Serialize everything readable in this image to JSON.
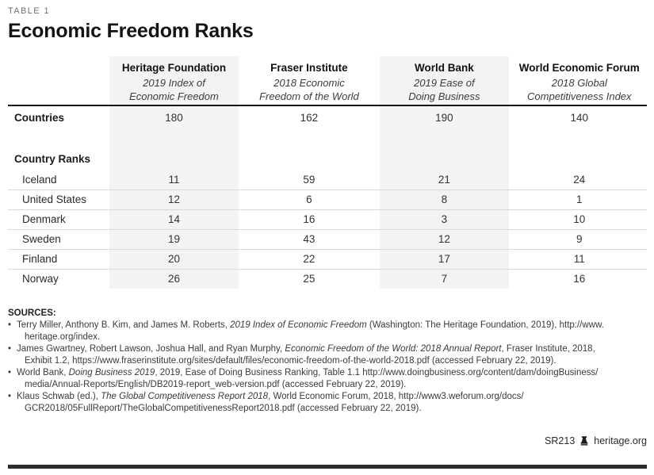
{
  "page": {
    "table_label": "TABLE 1",
    "title": "Economic Freedom Ranks",
    "footer_id": "SR213",
    "footer_site": "heritage.org"
  },
  "colors": {
    "shaded_column_bg": "#f3f3f1",
    "row_divider": "#dadada",
    "header_rule": "#161616",
    "bottom_bar": "#2c2c2c"
  },
  "table": {
    "columns": [
      {
        "name": "Heritage Foundation",
        "subtitle": [
          "2019 Index of",
          "Economic Freedom"
        ],
        "shaded": true
      },
      {
        "name": "Fraser Institute",
        "subtitle": [
          "2018 Economic",
          "Freedom of the World"
        ],
        "shaded": false
      },
      {
        "name": "World Bank",
        "subtitle": [
          "2019 Ease of",
          "Doing Business"
        ],
        "shaded": true
      },
      {
        "name": "World Economic Forum",
        "subtitle": [
          "2018 Global",
          "Competitiveness Index"
        ],
        "shaded": false
      }
    ],
    "countries_row": {
      "label": "Countries",
      "values": [
        "180",
        "162",
        "190",
        "140"
      ]
    },
    "section_label": "Country Ranks",
    "rows": [
      {
        "country": "Iceland",
        "values": [
          "11",
          "59",
          "21",
          "24"
        ]
      },
      {
        "country": "United States",
        "values": [
          "12",
          "6",
          "8",
          "1"
        ]
      },
      {
        "country": "Denmark",
        "values": [
          "14",
          "16",
          "3",
          "10"
        ]
      },
      {
        "country": "Sweden",
        "values": [
          "19",
          "43",
          "12",
          "9"
        ]
      },
      {
        "country": "Finland",
        "values": [
          "20",
          "22",
          "17",
          "11"
        ]
      },
      {
        "country": "Norway",
        "values": [
          "26",
          "25",
          "7",
          "16"
        ]
      }
    ]
  },
  "sources": {
    "heading": "SOURCES:",
    "items": [
      {
        "lines": [
          [
            {
              "t": "Terry Miller, Anthony B. Kim, and James M. Roberts, "
            },
            {
              "t": "2019 Index of Economic Freedom",
              "i": true
            },
            {
              "t": " (Washington: The Heritage Foundation, 2019), http://www."
            }
          ],
          [
            {
              "t": "heritage.org/index."
            }
          ]
        ]
      },
      {
        "lines": [
          [
            {
              "t": "James Gwartney, Robert Lawson, Joshua Hall, and Ryan Murphy, "
            },
            {
              "t": "Economic Freedom of the World: 2018 Annual Report",
              "i": true
            },
            {
              "t": ", Fraser Institute, 2018,"
            }
          ],
          [
            {
              "t": "Exhibit 1.2, https://www.fraserinstitute.org/sites/default/files/economic-freedom-of-the-world-2018.pdf (accessed February 22, 2019)."
            }
          ]
        ]
      },
      {
        "lines": [
          [
            {
              "t": "World Bank, "
            },
            {
              "t": "Doing Business 2019",
              "i": true
            },
            {
              "t": ", 2019, Ease of Doing Business Ranking, Table 1.1 http://www.doingbusiness.org/content/dam/doingBusiness/"
            }
          ],
          [
            {
              "t": "media/Annual-Reports/English/DB2019-report_web-version.pdf (accessed February 22, 2019)."
            }
          ]
        ]
      },
      {
        "lines": [
          [
            {
              "t": "Klaus Schwab (ed.), "
            },
            {
              "t": "The Global Competitiveness Report 2018",
              "i": true
            },
            {
              "t": ", World Economic Forum, 2018, http://www3.weforum.org/docs/"
            }
          ],
          [
            {
              "t": "GCR2018/05FullReport/TheGlobalCompetitivenessReport2018.pdf (accessed February 22, 2019)."
            }
          ]
        ]
      }
    ]
  }
}
